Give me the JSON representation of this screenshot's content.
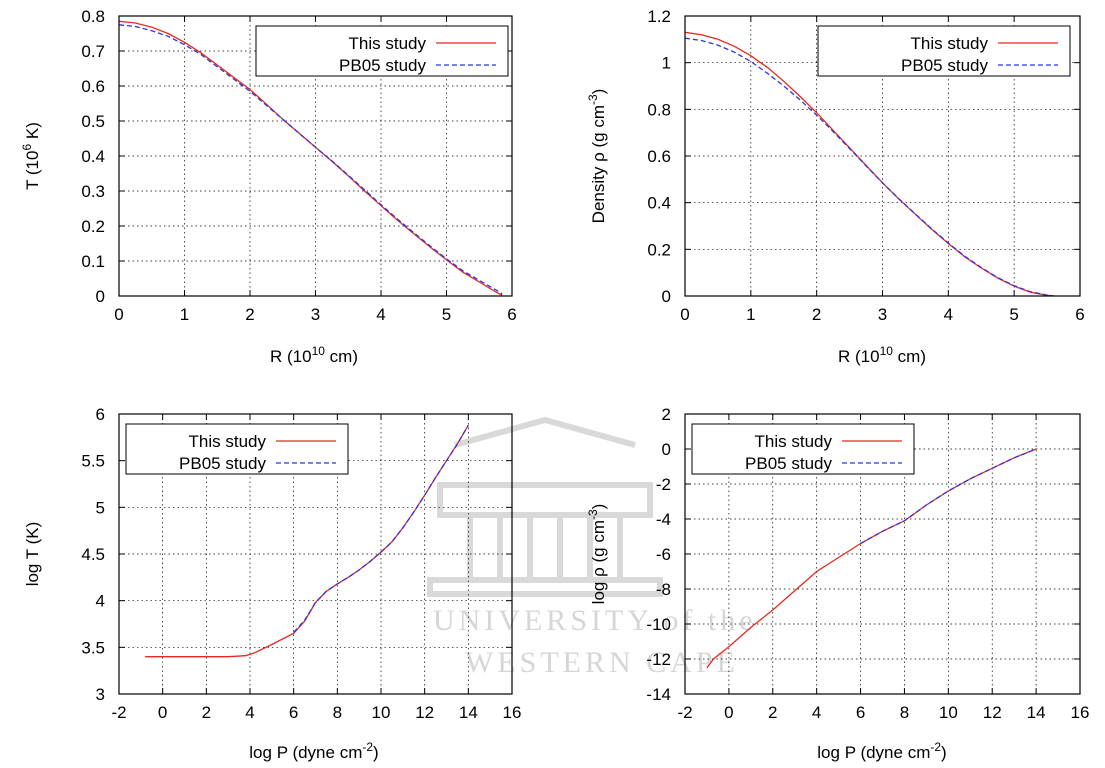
{
  "watermark": {
    "line1": "UNIVERSITY of the",
    "line2": "WESTERN CAPE",
    "color": "#d9d9d9"
  },
  "colors": {
    "this_study": "#e8281e",
    "pb05": "#2b35e6"
  },
  "chart_data": [
    {
      "type": "line",
      "xlabel": "R  (10",
      "xlabel_sup": "10",
      "xlabel_tail": " cm)",
      "ylabel": "T (10",
      "ylabel_sup": "6",
      "ylabel_tail": " K)",
      "xlim": [
        0,
        6
      ],
      "ylim": [
        0,
        0.8
      ],
      "xticks": [
        0,
        1,
        2,
        3,
        4,
        5,
        6
      ],
      "xtick_labels": [
        "0",
        "1",
        "2",
        "3",
        "4",
        "5",
        "6"
      ],
      "yticks": [
        0,
        0.1,
        0.2,
        0.3,
        0.4,
        0.5,
        0.6,
        0.7,
        0.8
      ],
      "ytick_labels": [
        "0",
        "0.1",
        "0.2",
        "0.3",
        "0.4",
        "0.5",
        "0.6",
        "0.7",
        "0.8"
      ],
      "grid": true,
      "legend": "top-right",
      "series": [
        {
          "name": "This study",
          "style": "solid",
          "color": "#e8281e",
          "x": [
            0,
            0.25,
            0.5,
            0.75,
            1,
            1.25,
            1.5,
            1.75,
            2,
            2.25,
            2.5,
            2.75,
            3,
            3.25,
            3.5,
            3.75,
            4,
            4.25,
            4.5,
            4.75,
            5,
            5.25,
            5.5,
            5.75,
            5.85
          ],
          "y": [
            0.785,
            0.78,
            0.768,
            0.75,
            0.725,
            0.695,
            0.66,
            0.625,
            0.59,
            0.548,
            0.505,
            0.465,
            0.425,
            0.385,
            0.343,
            0.3,
            0.258,
            0.217,
            0.178,
            0.14,
            0.103,
            0.068,
            0.04,
            0.012,
            0.002
          ]
        },
        {
          "name": "PB05 study",
          "style": "dashed",
          "color": "#2b35e6",
          "x": [
            0,
            0.25,
            0.5,
            0.75,
            1,
            1.25,
            1.5,
            1.75,
            2,
            2.25,
            2.5,
            2.75,
            3,
            3.25,
            3.5,
            3.75,
            4,
            4.25,
            4.5,
            4.75,
            5,
            5.25,
            5.5,
            5.75,
            5.85
          ],
          "y": [
            0.775,
            0.77,
            0.758,
            0.742,
            0.718,
            0.69,
            0.655,
            0.62,
            0.585,
            0.545,
            0.505,
            0.465,
            0.425,
            0.386,
            0.345,
            0.303,
            0.261,
            0.22,
            0.181,
            0.143,
            0.106,
            0.072,
            0.045,
            0.018,
            0.006
          ]
        }
      ]
    },
    {
      "type": "line",
      "xlabel": "R (10",
      "xlabel_sup": "10",
      "xlabel_tail": " cm)",
      "ylabel": "Density ρ (g cm",
      "ylabel_sup": "-3",
      "ylabel_tail": ")",
      "xlim": [
        0,
        6
      ],
      "ylim": [
        0,
        1.2
      ],
      "xticks": [
        0,
        1,
        2,
        3,
        4,
        5,
        6
      ],
      "xtick_labels": [
        "0",
        "1",
        "2",
        "3",
        "4",
        "5",
        "6"
      ],
      "yticks": [
        0,
        0.2,
        0.4,
        0.6,
        0.8,
        1,
        1.2
      ],
      "ytick_labels": [
        "0",
        "0.2",
        "0.4",
        "0.6",
        "0.8",
        "1",
        "1.2"
      ],
      "grid": true,
      "legend": "top-right",
      "series": [
        {
          "name": "This study",
          "style": "solid",
          "color": "#e8281e",
          "x": [
            0,
            0.25,
            0.5,
            0.75,
            1,
            1.25,
            1.5,
            1.75,
            2,
            2.25,
            2.5,
            2.75,
            3,
            3.25,
            3.5,
            3.75,
            4,
            4.25,
            4.5,
            4.75,
            5,
            5.25,
            5.5,
            5.6
          ],
          "y": [
            1.13,
            1.12,
            1.1,
            1.07,
            1.03,
            0.98,
            0.92,
            0.855,
            0.785,
            0.71,
            0.635,
            0.56,
            0.485,
            0.415,
            0.35,
            0.285,
            0.225,
            0.168,
            0.12,
            0.077,
            0.042,
            0.016,
            0.003,
            0.0
          ]
        },
        {
          "name": "PB05 study",
          "style": "dashed",
          "color": "#2b35e6",
          "x": [
            0,
            0.25,
            0.5,
            0.75,
            1,
            1.25,
            1.5,
            1.75,
            2,
            2.25,
            2.5,
            2.75,
            3,
            3.25,
            3.5,
            3.75,
            4,
            4.25,
            4.5,
            4.75,
            5,
            5.25,
            5.5,
            5.6
          ],
          "y": [
            1.105,
            1.095,
            1.075,
            1.045,
            1.005,
            0.955,
            0.9,
            0.84,
            0.775,
            0.705,
            0.632,
            0.558,
            0.485,
            0.416,
            0.351,
            0.287,
            0.227,
            0.17,
            0.122,
            0.079,
            0.044,
            0.018,
            0.004,
            0.0
          ]
        }
      ]
    },
    {
      "type": "line",
      "xlabel": "log P  (dyne cm",
      "xlabel_sup": "-2",
      "xlabel_tail": ")",
      "ylabel": "log T (K)",
      "ylabel_sup": "",
      "ylabel_tail": "",
      "xlim": [
        -2,
        16
      ],
      "ylim": [
        3,
        6
      ],
      "xticks": [
        -2,
        0,
        2,
        4,
        6,
        8,
        10,
        12,
        14,
        16
      ],
      "xtick_labels": [
        "-2",
        "0",
        "2",
        "4",
        "6",
        "8",
        "10",
        "12",
        "14",
        "16"
      ],
      "yticks": [
        3,
        3.5,
        4,
        4.5,
        5,
        5.5,
        6
      ],
      "ytick_labels": [
        "3",
        "3.5",
        "4",
        "4.5",
        "5",
        "5.5",
        "6"
      ],
      "grid": true,
      "legend": "top-left",
      "series": [
        {
          "name": "This study",
          "style": "solid",
          "color": "#e8281e",
          "x": [
            -0.8,
            0,
            1,
            2,
            3,
            3.8,
            4.2,
            5,
            6,
            6.5,
            7,
            7.5,
            8,
            8.5,
            9,
            9.5,
            10,
            10.5,
            11,
            11.5,
            12,
            12.5,
            13,
            13.5,
            14
          ],
          "y": [
            3.4,
            3.4,
            3.4,
            3.4,
            3.4,
            3.41,
            3.44,
            3.53,
            3.65,
            3.78,
            3.98,
            4.1,
            4.18,
            4.25,
            4.33,
            4.42,
            4.52,
            4.63,
            4.78,
            4.95,
            5.13,
            5.32,
            5.5,
            5.68,
            5.88
          ]
        },
        {
          "name": "PB05 study",
          "style": "dashed",
          "color": "#2b35e6",
          "x": [
            6,
            6.5,
            7,
            7.5,
            8,
            8.5,
            9,
            9.5,
            10,
            10.5,
            11,
            11.5,
            12,
            12.5,
            13,
            13.5,
            14
          ],
          "y": [
            3.66,
            3.79,
            3.98,
            4.1,
            4.18,
            4.25,
            4.33,
            4.42,
            4.52,
            4.63,
            4.78,
            4.95,
            5.13,
            5.32,
            5.5,
            5.68,
            5.88
          ]
        }
      ]
    },
    {
      "type": "line",
      "xlabel": "log P  (dyne cm",
      "xlabel_sup": "-2",
      "xlabel_tail": ")",
      "ylabel": "log ρ (g cm",
      "ylabel_sup": "-3",
      "ylabel_tail": ")",
      "xlim": [
        -2,
        16
      ],
      "ylim": [
        -14,
        2
      ],
      "xticks": [
        -2,
        0,
        2,
        4,
        6,
        8,
        10,
        12,
        14,
        16
      ],
      "xtick_labels": [
        "-2",
        "0",
        "2",
        "4",
        "6",
        "8",
        "10",
        "12",
        "14",
        "16"
      ],
      "yticks": [
        -14,
        -12,
        -10,
        -8,
        -6,
        -4,
        -2,
        0,
        2
      ],
      "ytick_labels": [
        "-14",
        "-12",
        "-10",
        "-8",
        "-6",
        "-4",
        "-2",
        "0",
        "2"
      ],
      "grid": true,
      "legend": "top-left",
      "series": [
        {
          "name": "This study",
          "style": "solid",
          "color": "#e8281e",
          "x": [
            -1.0,
            -0.7,
            -0.3,
            0,
            1,
            2,
            3,
            4,
            5,
            6,
            7,
            8,
            9,
            10,
            11,
            12,
            13,
            14
          ],
          "y": [
            -12.5,
            -12.0,
            -11.6,
            -11.3,
            -10.2,
            -9.2,
            -8.1,
            -7.0,
            -6.2,
            -5.4,
            -4.7,
            -4.1,
            -3.2,
            -2.4,
            -1.7,
            -1.1,
            -0.5,
            0.0
          ]
        },
        {
          "name": "PB05 study",
          "style": "dashed",
          "color": "#2b35e6",
          "x": [
            6,
            7,
            8,
            9,
            10,
            11,
            12,
            13,
            14
          ],
          "y": [
            -5.4,
            -4.7,
            -4.1,
            -3.2,
            -2.4,
            -1.7,
            -1.1,
            -0.5,
            0.0
          ]
        }
      ]
    }
  ]
}
